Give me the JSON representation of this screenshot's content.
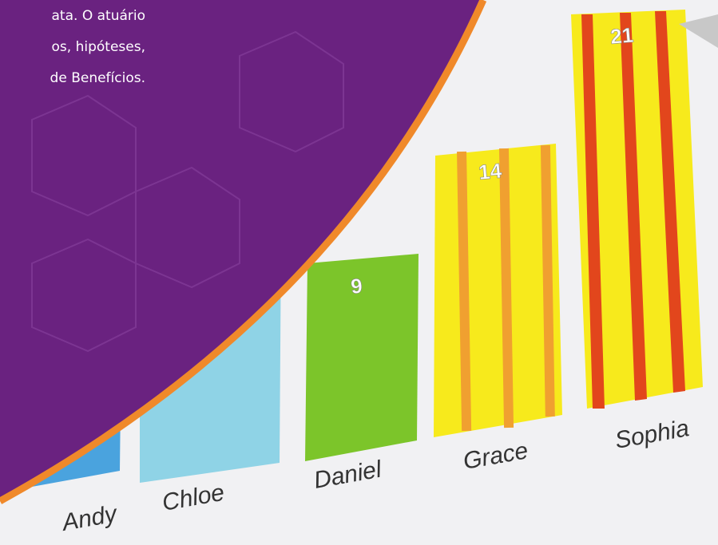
{
  "banner": {
    "text_lines": [
      "ata. O atuário",
      "os, hipóteses,",
      "de Benefícios."
    ]
  },
  "photo": {
    "bars": [
      {
        "name": "Andy"
      },
      {
        "name": "Chloe"
      },
      {
        "name": "Daniel",
        "value": 9
      },
      {
        "name": "Grace",
        "value": 14
      },
      {
        "name": "Sophia",
        "value": 21
      }
    ]
  }
}
